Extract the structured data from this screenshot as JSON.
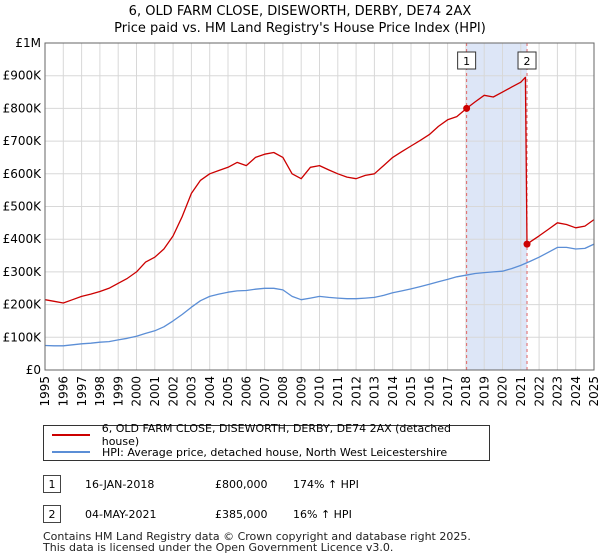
{
  "chart_data": {
    "type": "line",
    "title": "6, OLD FARM CLOSE, DISEWORTH, DERBY, DE74 2AX",
    "subtitle": "Price paid vs. HM Land Registry's House Price Index (HPI)",
    "xlim": [
      1995,
      2025
    ],
    "ylim": [
      0,
      1000000
    ],
    "y_ticks": [
      0,
      100000,
      200000,
      300000,
      400000,
      500000,
      600000,
      700000,
      800000,
      900000,
      1000000
    ],
    "y_tick_labels": [
      "£0",
      "£100K",
      "£200K",
      "£300K",
      "£400K",
      "£500K",
      "£600K",
      "£700K",
      "£800K",
      "£900K",
      "£1M"
    ],
    "x_ticks": [
      1995,
      1996,
      1997,
      1998,
      1999,
      2000,
      2001,
      2002,
      2003,
      2004,
      2005,
      2006,
      2007,
      2008,
      2009,
      2010,
      2011,
      2012,
      2013,
      2014,
      2015,
      2016,
      2017,
      2018,
      2019,
      2020,
      2021,
      2022,
      2023,
      2024,
      2025
    ],
    "x_tick_labels": [
      "1995",
      "1996",
      "1997",
      "1998",
      "1999",
      "2000",
      "2001",
      "2002",
      "2003",
      "2004",
      "2005",
      "2006",
      "2007",
      "2008",
      "2009",
      "2010",
      "2011",
      "2012",
      "2013",
      "2014",
      "2015",
      "2016",
      "2017",
      "2018",
      "2019",
      "2020",
      "2021",
      "2022",
      "2023",
      "2024",
      "2025"
    ],
    "grid": true,
    "shaded_period": [
      2018.04,
      2021.34
    ],
    "series": [
      {
        "name": "6, OLD FARM CLOSE, DISEWORTH, DERBY, DE74 2AX (detached house)",
        "color": "#cc0000",
        "x": [
          1995.0,
          1995.5,
          1996.0,
          1996.5,
          1997.0,
          1997.5,
          1998.0,
          1998.5,
          1999.0,
          1999.5,
          2000.0,
          2000.5,
          2001.0,
          2001.5,
          2002.0,
          2002.5,
          2003.0,
          2003.5,
          2004.0,
          2004.5,
          2005.0,
          2005.5,
          2006.0,
          2006.5,
          2007.0,
          2007.5,
          2008.0,
          2008.5,
          2009.0,
          2009.5,
          2010.0,
          2010.5,
          2011.0,
          2011.5,
          2012.0,
          2012.5,
          2013.0,
          2013.5,
          2014.0,
          2014.5,
          2015.0,
          2015.5,
          2016.0,
          2016.5,
          2017.0,
          2017.5,
          2018.04,
          2018.5,
          2019.0,
          2019.5,
          2020.0,
          2020.5,
          2021.0,
          2021.25,
          2021.34,
          2021.6,
          2022.0,
          2022.5,
          2023.0,
          2023.5,
          2024.0,
          2024.5,
          2025.0
        ],
        "values": [
          215000,
          210000,
          205000,
          215000,
          225000,
          232000,
          240000,
          250000,
          265000,
          280000,
          300000,
          330000,
          345000,
          370000,
          410000,
          470000,
          540000,
          580000,
          600000,
          610000,
          620000,
          635000,
          625000,
          650000,
          660000,
          665000,
          650000,
          600000,
          585000,
          620000,
          625000,
          612000,
          600000,
          590000,
          585000,
          595000,
          600000,
          625000,
          650000,
          668000,
          685000,
          702000,
          720000,
          745000,
          765000,
          775000,
          800000,
          820000,
          840000,
          835000,
          850000,
          865000,
          880000,
          895000,
          385000,
          395000,
          410000,
          430000,
          450000,
          445000,
          435000,
          440000,
          460000
        ]
      },
      {
        "name": "HPI: Average price, detached house, North West Leicestershire",
        "color": "#5b8ed6",
        "x": [
          1995.0,
          1995.5,
          1996.0,
          1996.5,
          1997.0,
          1997.5,
          1998.0,
          1998.5,
          1999.0,
          1999.5,
          2000.0,
          2000.5,
          2001.0,
          2001.5,
          2002.0,
          2002.5,
          2003.0,
          2003.5,
          2004.0,
          2004.5,
          2005.0,
          2005.5,
          2006.0,
          2006.5,
          2007.0,
          2007.5,
          2008.0,
          2008.5,
          2009.0,
          2009.5,
          2010.0,
          2010.5,
          2011.0,
          2011.5,
          2012.0,
          2012.5,
          2013.0,
          2013.5,
          2014.0,
          2014.5,
          2015.0,
          2015.5,
          2016.0,
          2016.5,
          2017.0,
          2017.5,
          2018.0,
          2018.5,
          2019.0,
          2019.5,
          2020.0,
          2020.5,
          2021.0,
          2021.5,
          2022.0,
          2022.5,
          2023.0,
          2023.5,
          2024.0,
          2024.5,
          2025.0
        ],
        "values": [
          75000,
          74000,
          74000,
          77000,
          80000,
          82000,
          85000,
          87000,
          92000,
          97000,
          103000,
          112000,
          120000,
          132000,
          150000,
          170000,
          192000,
          212000,
          225000,
          232000,
          238000,
          242000,
          243000,
          247000,
          250000,
          250000,
          245000,
          225000,
          215000,
          220000,
          225000,
          222000,
          220000,
          218000,
          218000,
          220000,
          222000,
          228000,
          236000,
          242000,
          248000,
          255000,
          262000,
          270000,
          277000,
          285000,
          290000,
          295000,
          298000,
          300000,
          302000,
          310000,
          320000,
          332000,
          345000,
          360000,
          375000,
          375000,
          370000,
          372000,
          385000
        ]
      }
    ],
    "markers": [
      {
        "label": "1",
        "x": 2018.04,
        "y": 800000
      },
      {
        "label": "2",
        "x": 2021.34,
        "y": 385000
      }
    ]
  },
  "legend": {
    "property_label": "6, OLD FARM CLOSE, DISEWORTH, DERBY, DE74 2AX (detached house)",
    "hpi_label": "HPI: Average price, detached house, North West Leicestershire"
  },
  "sales": [
    {
      "badge": "1",
      "date": "16-JAN-2018",
      "price": "£800,000",
      "hpi": "174% ↑ HPI"
    },
    {
      "badge": "2",
      "date": "04-MAY-2021",
      "price": "£385,000",
      "hpi": "16% ↑ HPI"
    }
  ],
  "footer": {
    "line1": "Contains HM Land Registry data © Crown copyright and database right 2025.",
    "line2": "This data is licensed under the Open Government Licence v3.0."
  },
  "colors": {
    "property_line": "#cc0000",
    "hpi_line": "#5b8ed6",
    "grid": "#d8d8d8",
    "shade": "#dde6f7",
    "vline": "#e06666"
  }
}
